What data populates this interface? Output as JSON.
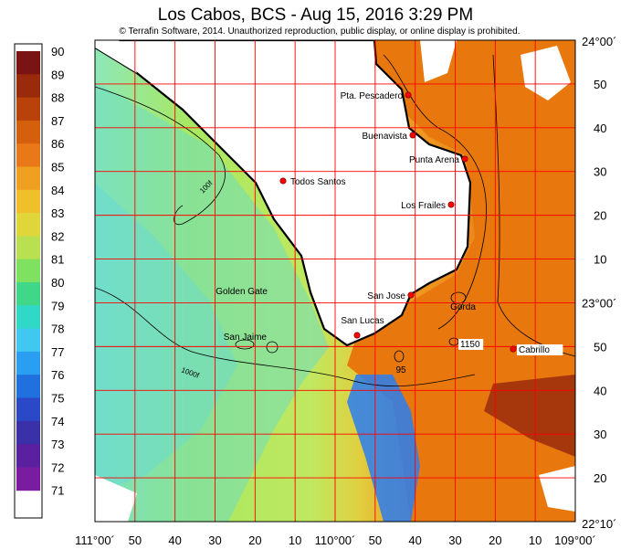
{
  "header": {
    "title": "Los Cabos, BCS - Aug 15, 2016 3:29 PM",
    "copyright": "© Terrafin Software,  2014.  Unauthorized reproduction, public display, or online display is prohibited."
  },
  "colorbar": {
    "min": 71,
    "max": 90,
    "labels": [
      "90",
      "89",
      "88",
      "87",
      "86",
      "85",
      "84",
      "83",
      "82",
      "81",
      "80",
      "79",
      "78",
      "77",
      "76",
      "75",
      "74",
      "73",
      "72",
      "71"
    ],
    "colors": [
      "#7a1414",
      "#9a2a0c",
      "#b8420a",
      "#d4600e",
      "#e87818",
      "#f0a020",
      "#f0c02a",
      "#e0d63a",
      "#b8e050",
      "#80e060",
      "#40d888",
      "#30d8c8",
      "#40c8f0",
      "#2a9ef0",
      "#2070e0",
      "#2a48c8",
      "#3a30a8",
      "#5a20a0",
      "#7a1ca0"
    ]
  },
  "map": {
    "colors": {
      "land": "#ffffff",
      "grid": "#ff0000",
      "coast": "#000000",
      "point": "#ff0000",
      "warm": "#e8780e",
      "cool": "#8ee0a0"
    },
    "lat_labels_right": [
      "24°00´",
      "50",
      "40",
      "30",
      "20",
      "10",
      "23°00´",
      "50",
      "40",
      "30",
      "20",
      "22°10´"
    ],
    "lon_labels_bottom": [
      "111°00´",
      "50",
      "40",
      "30",
      "20",
      "10",
      "110°00´",
      "50",
      "40",
      "30",
      "20",
      "10",
      "109°00´"
    ],
    "places": [
      {
        "name": "Pta. Pescadero"
      },
      {
        "name": "Buenavista"
      },
      {
        "name": "Punta Arena"
      },
      {
        "name": "Todos Santos"
      },
      {
        "name": "Los Frailes"
      },
      {
        "name": "Golden Gate"
      },
      {
        "name": "San Jose"
      },
      {
        "name": "Gorda"
      },
      {
        "name": "San Lucas"
      },
      {
        "name": "San Jaime"
      },
      {
        "name": "1150"
      },
      {
        "name": "Cabrillo"
      },
      {
        "name": "95"
      }
    ],
    "contours": [
      {
        "label": "100f"
      },
      {
        "label": "1000f"
      }
    ]
  }
}
